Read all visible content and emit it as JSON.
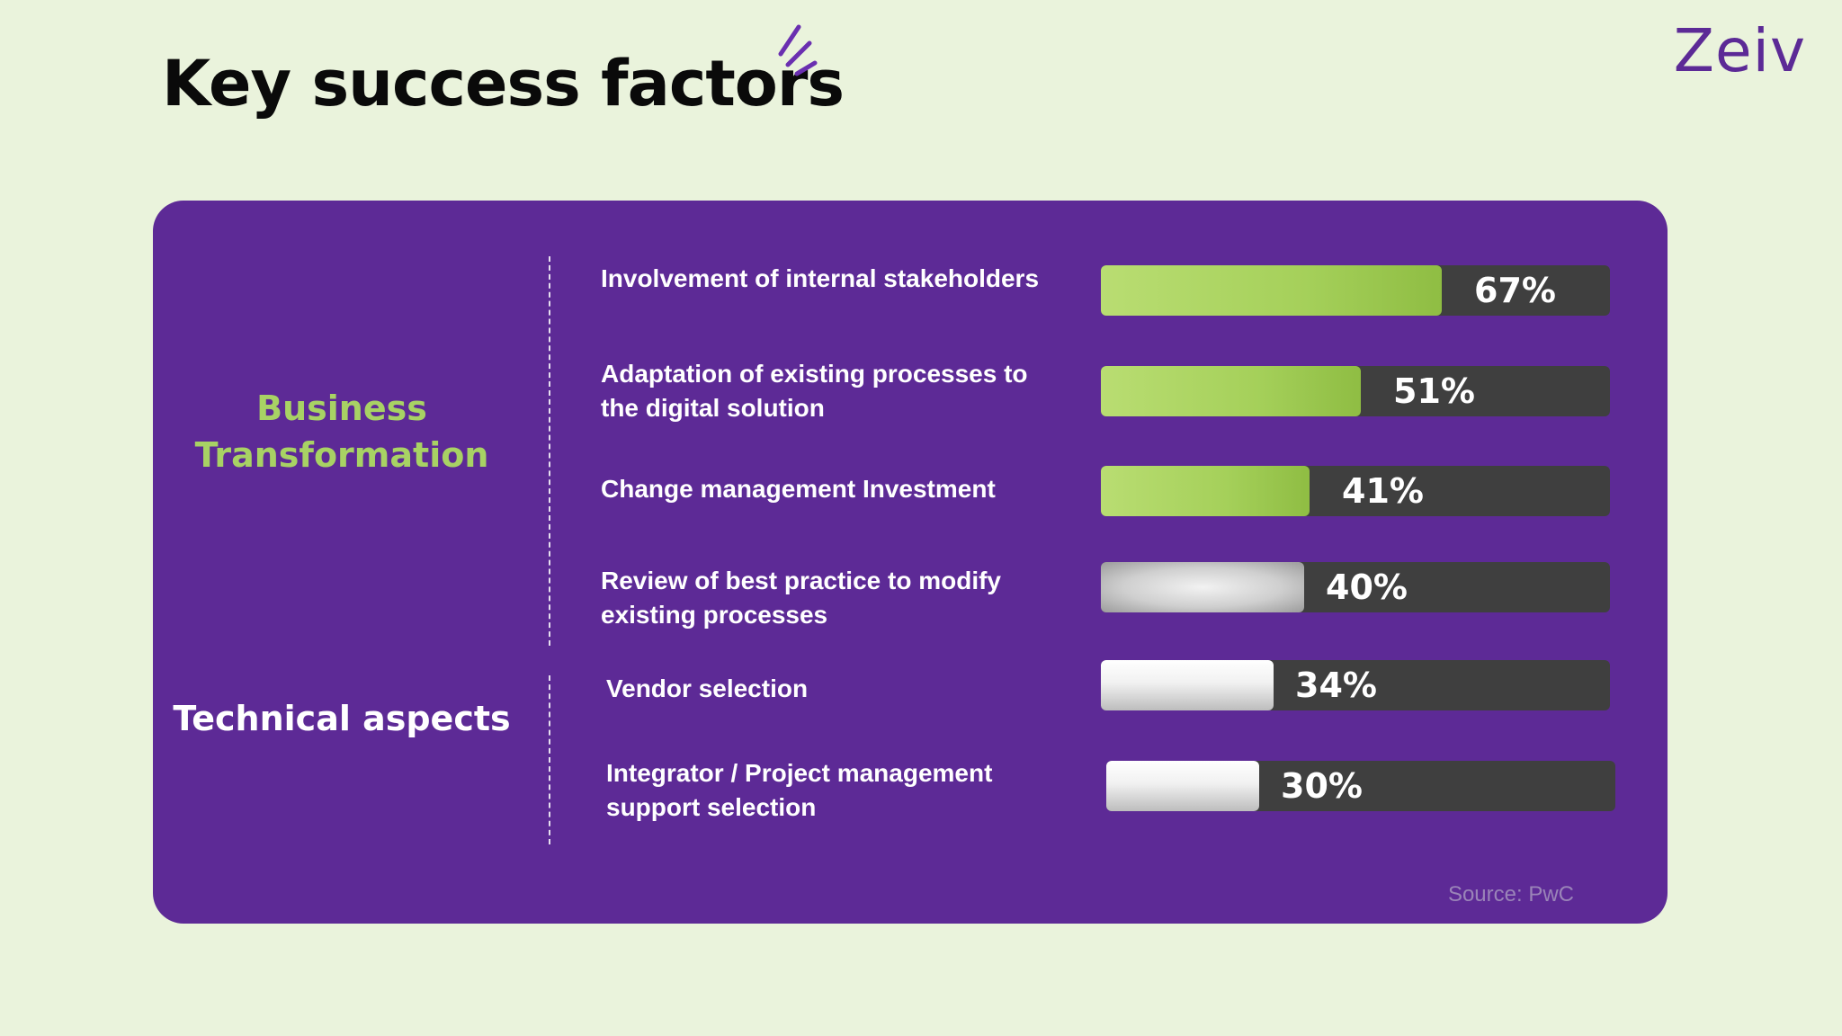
{
  "page": {
    "title": "Key success factors",
    "logo": "Zeiv"
  },
  "groups": {
    "business": "Business Transformation",
    "technical": "Technical aspects"
  },
  "source": "Source: PwC",
  "colors": {
    "background": "#eaf3dc",
    "panel": "#5d2a96",
    "track": "#3f3f3f",
    "green": "#a5d05a",
    "business_label": "#a8d264",
    "logo": "#5c2a96"
  },
  "chart_data": {
    "type": "bar",
    "orientation": "horizontal",
    "title": "Key success factors",
    "xlim": [
      0,
      100
    ],
    "unit": "%",
    "categories": [
      "Involvement of internal stakeholders",
      "Adaptation of existing processes to the digital solution",
      "Change management Investment",
      "Review of best practice to modify existing processes",
      "Vendor selection",
      "Integrator / Project management support selection"
    ],
    "values": [
      67,
      51,
      41,
      40,
      34,
      30
    ],
    "value_labels": [
      "67%",
      "51%",
      "41%",
      "40%",
      "34%",
      "30%"
    ],
    "groups": [
      "Business Transformation",
      "Business Transformation",
      "Business Transformation",
      "Business Transformation",
      "Technical aspects",
      "Technical aspects"
    ],
    "bar_styles": [
      "green",
      "green",
      "green",
      "silver",
      "white",
      "white"
    ],
    "source": "Source: PwC"
  }
}
